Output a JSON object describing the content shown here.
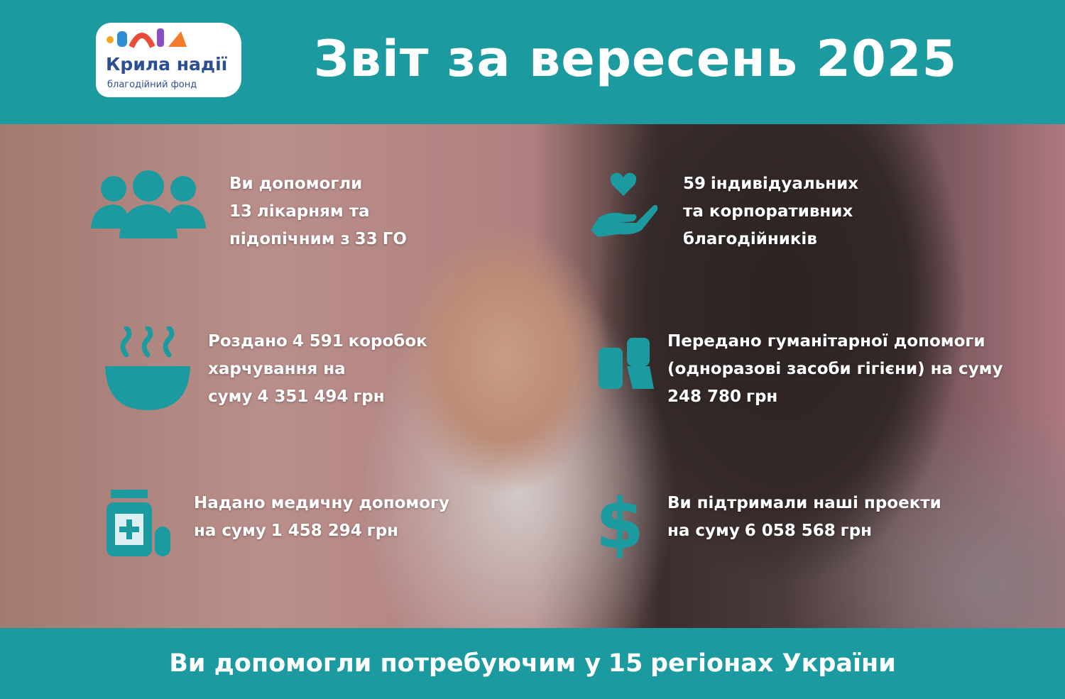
{
  "logo": {
    "name": "Крила надії",
    "tagline": "благодійний фонд"
  },
  "header": {
    "title": "Звіт за вересень 2025"
  },
  "stats": [
    {
      "lines": [
        [
          {
            "text": "Ви допомогли"
          }
        ],
        [
          {
            "text": "13",
            "bold": true
          },
          {
            "text": "лікарням та"
          }
        ],
        [
          {
            "text": "підопічним з"
          },
          {
            "text": "33",
            "bold": true
          },
          {
            "text": "ГО"
          }
        ]
      ]
    },
    {
      "lines": [
        [
          {
            "text": "59",
            "bold": true
          },
          {
            "text": "індивідуальних"
          }
        ],
        [
          {
            "text": "та корпоративних"
          }
        ],
        [
          {
            "text": "благодійників"
          }
        ]
      ]
    },
    {
      "lines": [
        [
          {
            "text": "Роздано"
          },
          {
            "text": "4 591",
            "bold": true
          },
          {
            "text": "коробок"
          }
        ],
        [
          {
            "text": "харчування на"
          }
        ],
        [
          {
            "text": "суму"
          },
          {
            "text": "4 351 494",
            "bold": true
          },
          {
            "text": "грн"
          }
        ]
      ]
    },
    {
      "lines": [
        [
          {
            "text": "Передано гуманітарної допомоги"
          }
        ],
        [
          {
            "text": "(одноразові засоби гігієни) на суму"
          }
        ],
        [
          {
            "text": "248 780",
            "bold": true
          },
          {
            "text": "грн"
          }
        ]
      ]
    },
    {
      "lines": [
        [
          {
            "text": "Надано медичну допомогу"
          }
        ],
        [
          {
            "text": "на суму"
          },
          {
            "text": "1 458 294",
            "bold": true
          },
          {
            "text": "грн"
          }
        ]
      ]
    },
    {
      "lines": [
        [
          {
            "text": "Ви підтримали наші проекти"
          }
        ],
        [
          {
            "text": "на суму"
          },
          {
            "text": "6 058 568",
            "bold": true
          },
          {
            "text": "грн"
          }
        ]
      ]
    }
  ],
  "footer": {
    "runs": [
      {
        "text": "Ви допомогли потребуючим у"
      },
      {
        "text": "15",
        "bold": true
      },
      {
        "text": "регіонах України"
      }
    ]
  }
}
